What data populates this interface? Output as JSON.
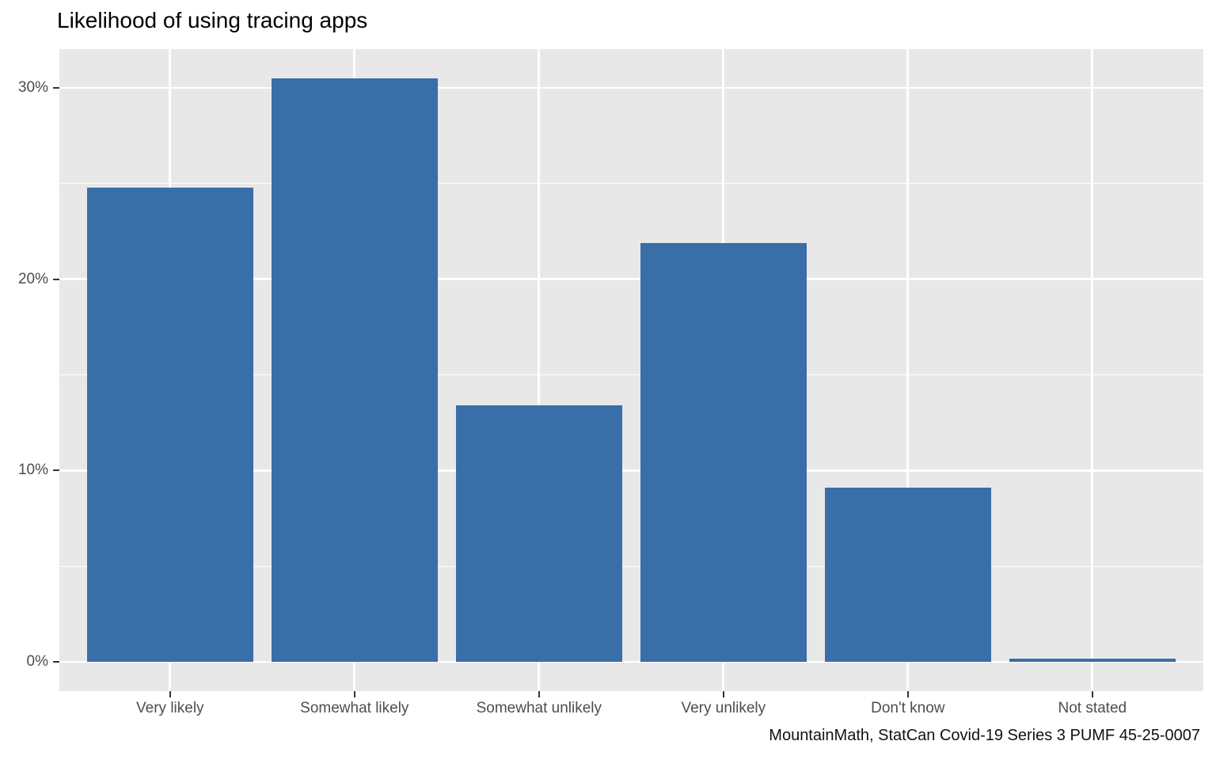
{
  "chart_data": {
    "type": "bar",
    "title": "Likelihood of using tracing apps",
    "caption": "MountainMath, StatCan Covid-19 Series 3 PUMF 45-25-0007",
    "categories": [
      "Very likely",
      "Somewhat likely",
      "Somewhat unlikely",
      "Very unlikely",
      "Don't know",
      "Not stated"
    ],
    "values": [
      24.8,
      30.5,
      13.4,
      21.9,
      9.1,
      0.15
    ],
    "unit": "percent",
    "xlabel": "",
    "ylabel": "",
    "ylim": [
      -1.5,
      32
    ],
    "ytick_values": [
      0,
      10,
      20,
      30
    ],
    "ytick_labels": [
      "0%",
      "10%",
      "20%",
      "30%"
    ],
    "minor_tick_values": [
      5,
      15,
      25
    ],
    "grid": true,
    "legend_position": "none",
    "colors": {
      "bar_fill": "#3A6EA8",
      "panel_background": "#E8E8E8",
      "gridline": "#FFFFFF",
      "axis_text": "#4D4D4D",
      "tick_mark": "#333333",
      "title_text": "#000000"
    }
  }
}
